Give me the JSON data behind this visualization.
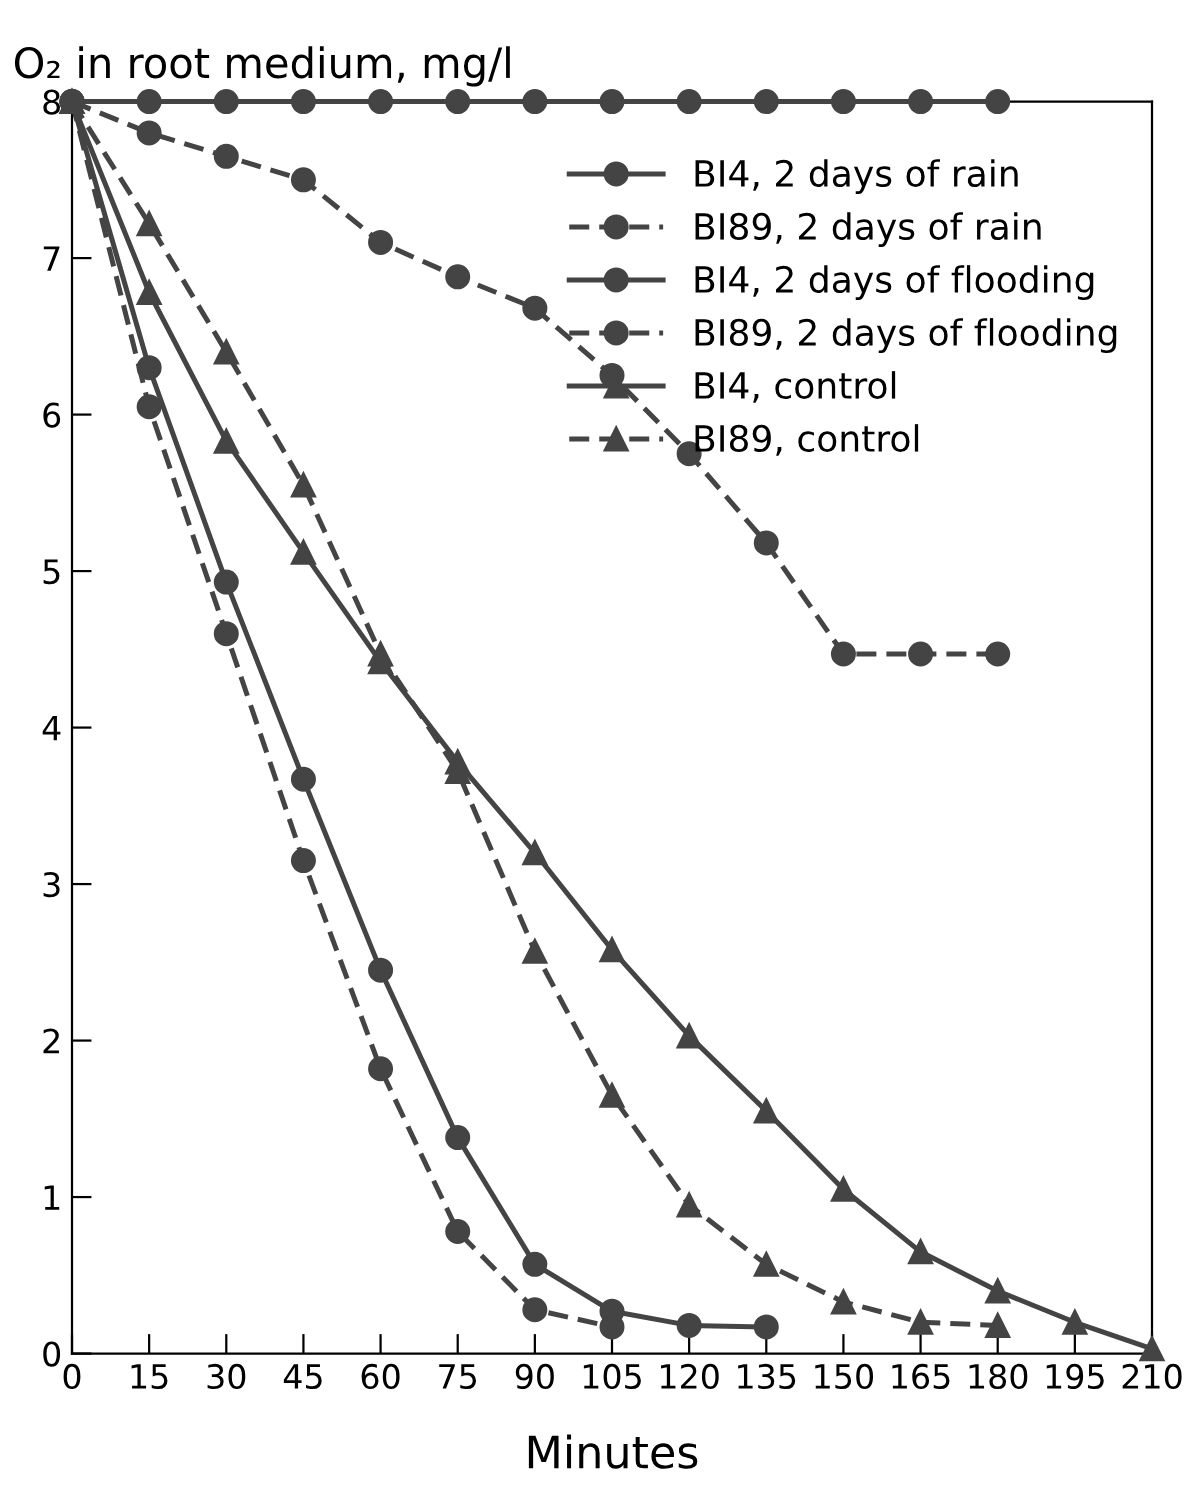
{
  "chart_data": {
    "type": "line",
    "title": "O₂ in root medium, mg/l",
    "xlabel": "Minutes",
    "xlim": [
      0,
      210
    ],
    "ylim": [
      0,
      8
    ],
    "xticks": [
      0,
      15,
      30,
      45,
      60,
      75,
      90,
      105,
      120,
      135,
      150,
      165,
      180,
      195,
      210
    ],
    "yticks": [
      0,
      1,
      2,
      3,
      4,
      5,
      6,
      7,
      8
    ],
    "grid": false,
    "legend": "top right",
    "series": [
      {
        "name": "BI4, 2 days of rain",
        "color": "#444444",
        "marker": "circle",
        "line_style": "solid",
        "x": [
          0,
          15,
          30,
          45,
          60,
          75,
          90,
          105,
          120,
          135,
          150,
          165,
          180
        ],
        "values": [
          8,
          8,
          8,
          8,
          8,
          8,
          8,
          8,
          8,
          8,
          8,
          8,
          8
        ]
      },
      {
        "name": "BI89, 2 days of rain",
        "color": "#444444",
        "marker": "circle",
        "line_style": "dashed",
        "x": [
          0,
          15,
          30,
          45,
          60,
          75,
          90,
          105,
          120,
          135,
          150,
          165,
          180
        ],
        "values": [
          8,
          7.8,
          7.65,
          7.5,
          7.1,
          6.88,
          6.68,
          6.25,
          5.75,
          5.18,
          4.47,
          4.47,
          4.47
        ]
      },
      {
        "name": "BI4, 2 days of flooding",
        "color": "#444444",
        "marker": "circle",
        "line_style": "solid",
        "x": [
          0,
          15,
          30,
          45,
          60,
          75,
          90,
          105,
          120,
          135
        ],
        "values": [
          8,
          6.3,
          4.93,
          3.67,
          2.45,
          1.38,
          0.57,
          0.27,
          0.18,
          0.17
        ]
      },
      {
        "name": "BI89, 2 days of flooding",
        "color": "#444444",
        "marker": "circle",
        "line_style": "dashed",
        "x": [
          0,
          15,
          30,
          45,
          60,
          75,
          90,
          105
        ],
        "values": [
          8,
          6.05,
          4.6,
          3.15,
          1.82,
          0.78,
          0.28,
          0.17
        ]
      },
      {
        "name": "BI4, control",
        "color": "#444444",
        "marker": "triangle",
        "line_style": "solid",
        "x": [
          0,
          15,
          30,
          45,
          60,
          75,
          90,
          105,
          120,
          135,
          150,
          165,
          180,
          195,
          210
        ],
        "values": [
          8,
          6.78,
          5.83,
          5.12,
          4.42,
          3.78,
          3.2,
          2.58,
          2.03,
          1.55,
          1.05,
          0.65,
          0.4,
          0.2,
          0.03
        ]
      },
      {
        "name": "BI89, control",
        "color": "#444444",
        "marker": "triangle",
        "line_style": "dashed",
        "x": [
          0,
          15,
          30,
          45,
          60,
          75,
          90,
          105,
          120,
          135,
          150,
          165,
          180
        ],
        "values": [
          8,
          7.22,
          6.4,
          5.55,
          4.47,
          3.72,
          2.57,
          1.65,
          0.95,
          0.57,
          0.33,
          0.2,
          0.18
        ]
      }
    ]
  }
}
